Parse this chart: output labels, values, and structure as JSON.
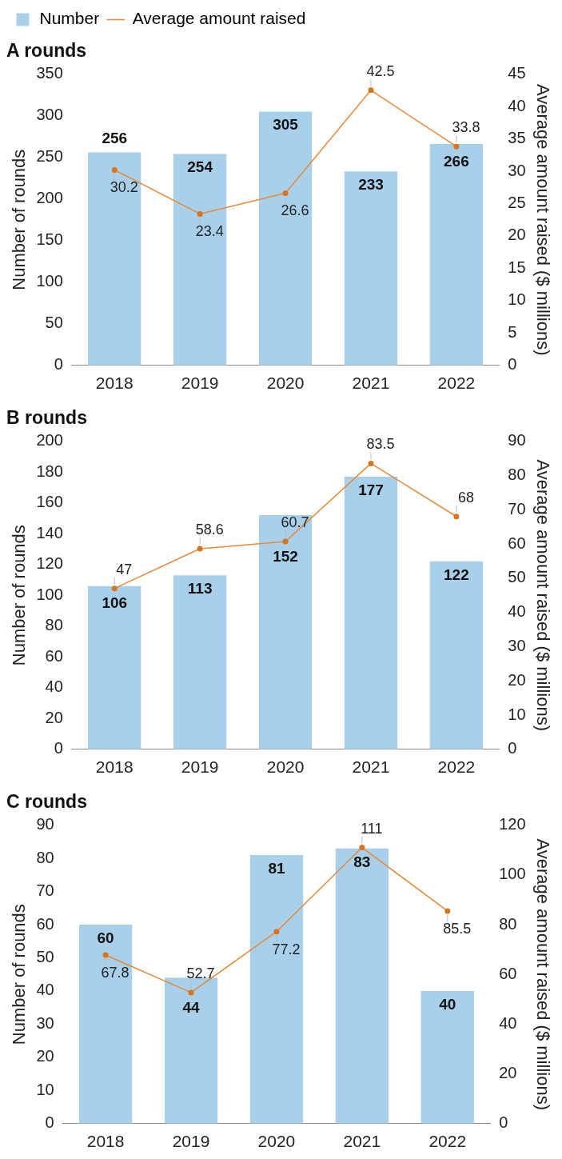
{
  "chart_data": [
    {
      "type": "bar",
      "title": "A rounds",
      "categories": [
        "2018",
        "2019",
        "2020",
        "2021",
        "2022"
      ],
      "ylabel": "Number of rounds",
      "y2label": "Average amount raised ($ millions)",
      "series": [
        {
          "name": "Number",
          "color": "#a8d0ea",
          "values": [
            256,
            254,
            305,
            233,
            266
          ]
        },
        {
          "name": "Average amount raised",
          "type": "line",
          "axis": "y2",
          "color": "#e8893a",
          "values": [
            30.2,
            23.4,
            26.6,
            42.5,
            33.8
          ]
        }
      ],
      "ylim": [
        0,
        350
      ],
      "yticks": [
        0,
        50,
        100,
        150,
        200,
        250,
        300,
        350
      ],
      "y2lim": [
        0,
        45
      ],
      "y2ticks": [
        0,
        5,
        10,
        15,
        20,
        25,
        30,
        35,
        40,
        45
      ],
      "data_labels": true,
      "marker": "circle",
      "legend": "top left",
      "grid": false
    },
    {
      "type": "bar",
      "title": "B rounds",
      "categories": [
        "2018",
        "2019",
        "2020",
        "2021",
        "2022"
      ],
      "ylabel": "Number of rounds",
      "y2label": "Average amount raised ($ millions)",
      "series": [
        {
          "color": "#a8d0ea",
          "values": [
            106,
            113,
            152,
            177,
            122
          ]
        },
        {
          "type": "line",
          "axis": "y2",
          "color": "#e8893a",
          "values": [
            47,
            58.6,
            60.7,
            83.5,
            68
          ]
        }
      ],
      "ylim": [
        0,
        200
      ],
      "yticks": [
        0,
        20,
        40,
        60,
        80,
        100,
        120,
        140,
        160,
        180,
        200
      ],
      "y2lim": [
        0,
        90
      ],
      "y2ticks": [
        0,
        10,
        20,
        30,
        40,
        50,
        60,
        70,
        80,
        90
      ],
      "data_labels": true,
      "marker": "circle",
      "grid": false
    },
    {
      "type": "bar",
      "title": "C rounds",
      "categories": [
        "2018",
        "2019",
        "2020",
        "2021",
        "2022"
      ],
      "ylabel": "Number of rounds",
      "y2label": "Average amount raised ($ millions)",
      "series": [
        {
          "color": "#a8d0ea",
          "values": [
            60,
            44,
            81,
            83,
            40
          ]
        },
        {
          "type": "line",
          "axis": "y2",
          "color": "#e8893a",
          "values": [
            67.8,
            52.7,
            77.2,
            111,
            85.5
          ]
        }
      ],
      "ylim": [
        0,
        90
      ],
      "yticks": [
        0,
        10,
        20,
        30,
        40,
        50,
        60,
        70,
        80,
        90
      ],
      "y2lim": [
        0,
        120
      ],
      "y2ticks": [
        0,
        20,
        40,
        60,
        80,
        100,
        120
      ],
      "data_labels": true,
      "marker": "circle",
      "grid": false
    }
  ]
}
